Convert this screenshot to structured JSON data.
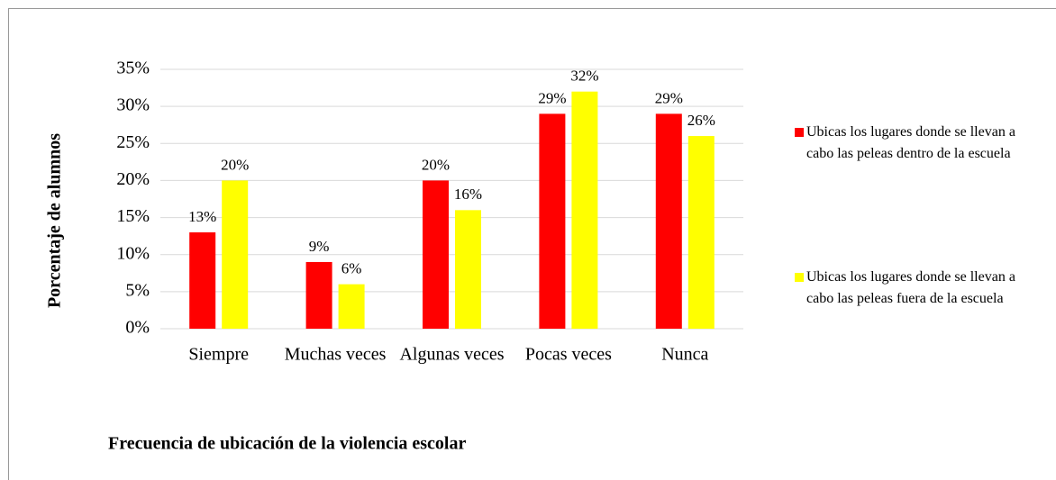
{
  "chart_data": {
    "type": "bar",
    "ylabel": "Porcentaje de alumnos",
    "xlabel": "Frecuencia de ubicación de la violencia escolar",
    "categories": [
      "Siempre",
      "Muchas veces",
      "Algunas veces",
      "Pocas veces",
      "Nunca"
    ],
    "series": [
      {
        "name": "Ubicas los lugares donde se llevan a cabo las peleas dentro de la escuela",
        "color": "#ff0000",
        "values": [
          13,
          9,
          20,
          29,
          29
        ],
        "value_labels": [
          "13%",
          "9%",
          "20%",
          "29%",
          "29%"
        ]
      },
      {
        "name": "Ubicas los lugares donde se llevan a cabo las peleas fuera de la escuela",
        "color": "#ffff00",
        "values": [
          20,
          6,
          16,
          32,
          26
        ],
        "value_labels": [
          "20%",
          "6%",
          "16%",
          "32%",
          "26%"
        ]
      }
    ],
    "ylim": [
      0,
      35
    ],
    "yticks": [
      {
        "value": 0,
        "label": "0%"
      },
      {
        "value": 5,
        "label": "5%"
      },
      {
        "value": 10,
        "label": "10%"
      },
      {
        "value": 15,
        "label": "15%"
      },
      {
        "value": 20,
        "label": "20%"
      },
      {
        "value": 25,
        "label": "25%"
      },
      {
        "value": 30,
        "label": "30%"
      },
      {
        "value": 35,
        "label": "35%"
      }
    ],
    "grid": true,
    "legend": "right"
  }
}
